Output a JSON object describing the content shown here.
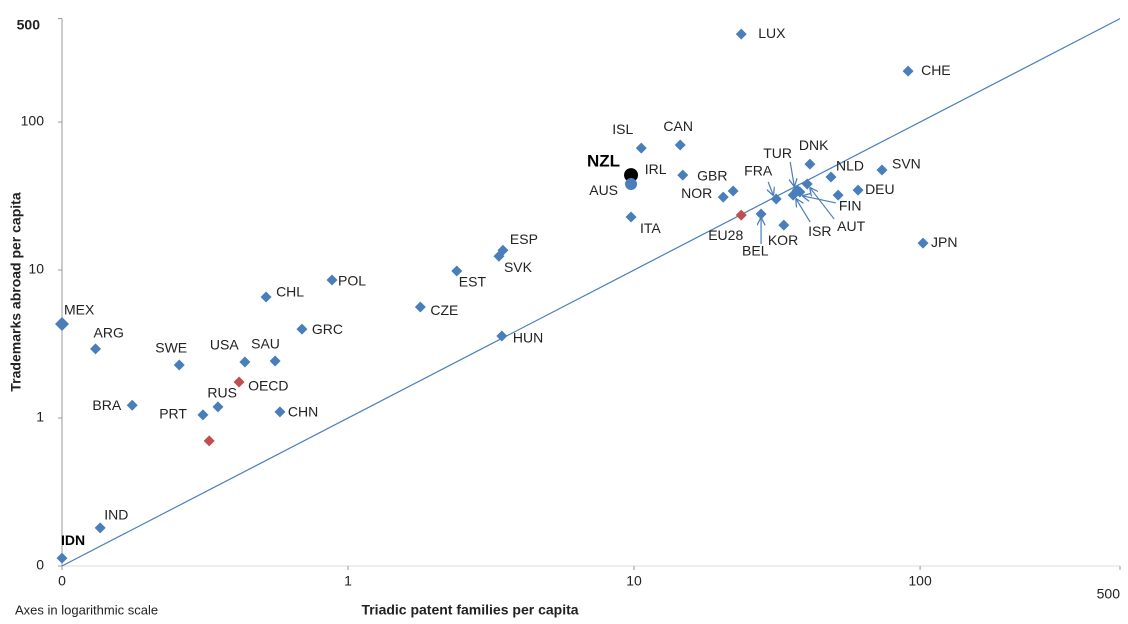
{
  "chart_data": {
    "type": "scatter",
    "x_label": "Triadic patent families per capita",
    "y_label": "Trademarks abroad per capita",
    "note": "Axes in logarithmic scale",
    "log_scale": true,
    "diagonal": true,
    "xlim": [
      0.1,
      500
    ],
    "ylim": [
      0.1,
      500
    ],
    "xticks": [
      {
        "value": 0.1,
        "label": "0"
      },
      1,
      10,
      100,
      500
    ],
    "yticks": [
      {
        "value": 0.1,
        "label": "0"
      },
      1,
      10,
      100,
      500
    ],
    "points": [
      {
        "label": "LUX",
        "x": 23.7,
        "y": 393,
        "color": "#4a7ebb",
        "shape": "diamond"
      },
      {
        "label": "CHE",
        "x": 90.8,
        "y": 221,
        "color": "#4a7ebb",
        "shape": "diamond"
      },
      {
        "label": "ISL",
        "x": 10.6,
        "y": 66.7,
        "color": "#4a7ebb",
        "shape": "diamond"
      },
      {
        "label": "CAN",
        "x": 14.5,
        "y": 69.9,
        "color": "#4a7ebb",
        "shape": "diamond"
      },
      {
        "label": "NZL",
        "x": 9.76,
        "y": 43.8,
        "color": "#000000",
        "shape": "circle"
      },
      {
        "label": "AUS",
        "x": 9.76,
        "y": 38.1,
        "color": "#4a7ebb",
        "shape": "circle"
      },
      {
        "label": "IRL",
        "x": 14.8,
        "y": 43.8,
        "color": "#4a7ebb",
        "shape": "diamond"
      },
      {
        "label": "GBR",
        "x": 22.2,
        "y": 34.2,
        "color": "#4a7ebb",
        "shape": "diamond"
      },
      {
        "label": "NOR",
        "x": 20.5,
        "y": 31.1,
        "color": "#4a7ebb",
        "shape": "diamond"
      },
      {
        "label": "ITA",
        "x": 9.76,
        "y": 22.8,
        "color": "#4a7ebb",
        "shape": "diamond"
      },
      {
        "label": "EU28",
        "x": 23.7,
        "y": 23.5,
        "color": "#c0504d",
        "shape": "diamond"
      },
      {
        "label": "FRA",
        "x": 31.4,
        "y": 30.2,
        "color": "#4a7ebb",
        "shape": "diamond"
      },
      {
        "label": "BEL",
        "x": 27.8,
        "y": 23.9,
        "color": "#4a7ebb",
        "shape": "diamond"
      },
      {
        "label": "KOR",
        "x": 33.4,
        "y": 20.1,
        "color": "#4a7ebb",
        "shape": "diamond"
      },
      {
        "label": "TUR",
        "x": 37.2,
        "y": 34.7,
        "color": "#4a7ebb",
        "shape": "diamond"
      },
      {
        "label": "ISR",
        "x": 36.0,
        "y": 32.1,
        "color": "#4a7ebb",
        "shape": "diamond"
      },
      {
        "label": "FIN",
        "x": 38.0,
        "y": 33.7,
        "color": "#4a7ebb",
        "shape": "diamond"
      },
      {
        "label": "AUT",
        "x": 40.3,
        "y": 38.1,
        "color": "#4a7ebb",
        "shape": "diamond"
      },
      {
        "label": "DNK",
        "x": 41.2,
        "y": 52.0,
        "color": "#4a7ebb",
        "shape": "diamond"
      },
      {
        "label": "NLD",
        "x": 48.8,
        "y": 42.5,
        "color": "#4a7ebb",
        "shape": "diamond"
      },
      {
        "label": null,
        "x": 51.7,
        "y": 32.1,
        "color": "#4a7ebb",
        "shape": "diamond"
      },
      {
        "label": "DEU",
        "x": 60.7,
        "y": 34.7,
        "color": "#4a7ebb",
        "shape": "diamond"
      },
      {
        "label": "SVN",
        "x": 73.6,
        "y": 47.4,
        "color": "#4a7ebb",
        "shape": "diamond"
      },
      {
        "label": "JPN",
        "x": 102.4,
        "y": 15.2,
        "color": "#4a7ebb",
        "shape": "diamond"
      },
      {
        "label": "ESP",
        "x": 3.48,
        "y": 13.6,
        "color": "#4a7ebb",
        "shape": "diamond"
      },
      {
        "label": "SVK",
        "x": 3.37,
        "y": 12.4,
        "color": "#4a7ebb",
        "shape": "diamond"
      },
      {
        "label": "EST",
        "x": 2.4,
        "y": 9.85,
        "color": "#4a7ebb",
        "shape": "diamond"
      },
      {
        "label": "POL",
        "x": 0.879,
        "y": 8.56,
        "color": "#4a7ebb",
        "shape": "diamond"
      },
      {
        "label": "CHL",
        "x": 0.517,
        "y": 6.57,
        "color": "#4a7ebb",
        "shape": "diamond"
      },
      {
        "label": "CZE",
        "x": 1.79,
        "y": 5.62,
        "color": "#4a7ebb",
        "shape": "diamond"
      },
      {
        "label": "HUN",
        "x": 3.45,
        "y": 3.58,
        "color": "#4a7ebb",
        "shape": "diamond"
      },
      {
        "label": "GRC",
        "x": 0.69,
        "y": 3.99,
        "color": "#4a7ebb",
        "shape": "diamond"
      },
      {
        "label": "MEX",
        "x": 0.1,
        "y": 4.32,
        "color": "#4a7ebb",
        "shape": "diamond"
      },
      {
        "label": "ARG",
        "x": 0.131,
        "y": 2.93,
        "color": "#4a7ebb",
        "shape": "diamond"
      },
      {
        "label": "SWE",
        "x": 0.257,
        "y": 2.28,
        "color": "#4a7ebb",
        "shape": "diamond"
      },
      {
        "label": "USA",
        "x": 0.436,
        "y": 2.39,
        "color": "#4a7ebb",
        "shape": "diamond"
      },
      {
        "label": "SAU",
        "x": 0.556,
        "y": 2.43,
        "color": "#4a7ebb",
        "shape": "diamond"
      },
      {
        "label": "OECD",
        "x": 0.416,
        "y": 1.75,
        "color": "#c0504d",
        "shape": "diamond"
      },
      {
        "label": "BRA",
        "x": 0.176,
        "y": 1.22,
        "color": "#4a7ebb",
        "shape": "diamond"
      },
      {
        "label": "RUS",
        "x": 0.351,
        "y": 1.19,
        "color": "#4a7ebb",
        "shape": "diamond"
      },
      {
        "label": "PRT",
        "x": 0.311,
        "y": 1.05,
        "color": "#4a7ebb",
        "shape": "diamond"
      },
      {
        "label": "CHN",
        "x": 0.578,
        "y": 1.1,
        "color": "#4a7ebb",
        "shape": "diamond"
      },
      {
        "label": null,
        "x": 0.327,
        "y": 0.7,
        "color": "#c0504d",
        "shape": "diamond"
      },
      {
        "label": "IND",
        "x": 0.136,
        "y": 0.181,
        "color": "#4a7ebb",
        "shape": "diamond"
      },
      {
        "label": "IDN",
        "x": 0.1,
        "y": 0.113,
        "color": "#4a7ebb",
        "shape": "diamond"
      }
    ]
  }
}
